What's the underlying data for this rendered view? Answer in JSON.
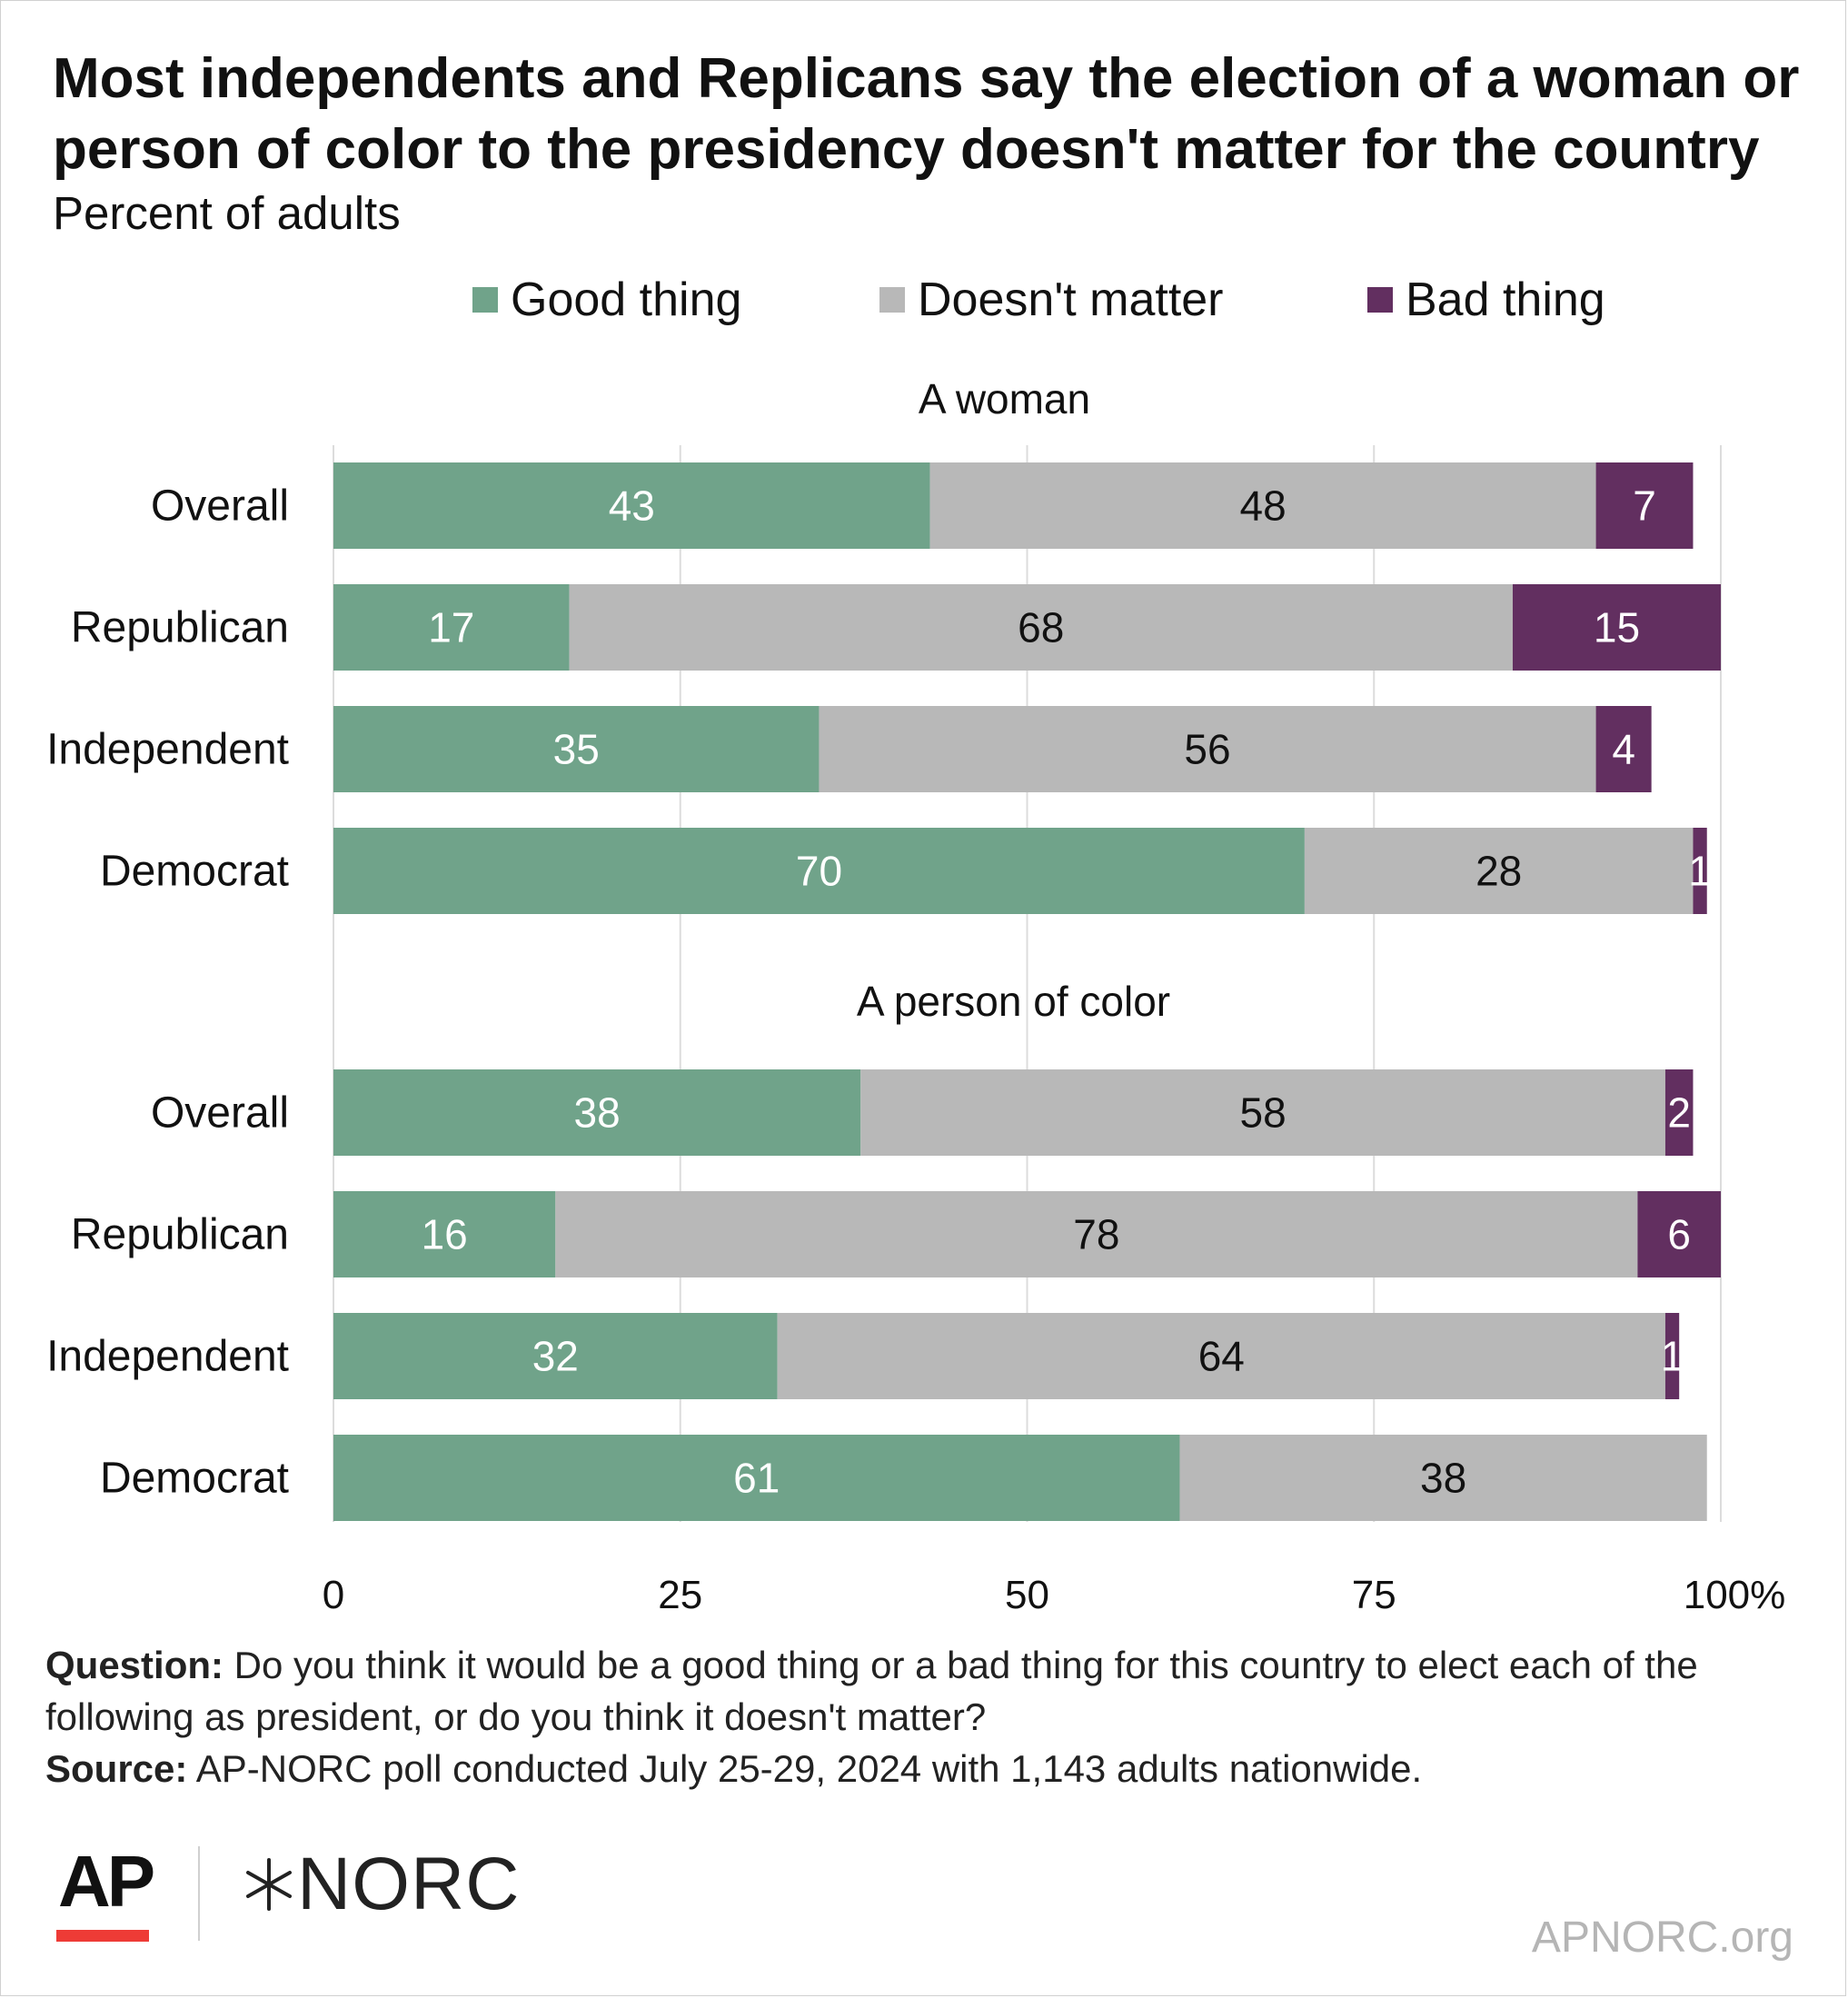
{
  "title": "Most independents and Replicans say the election of a woman or person of color to the presidency doesn't matter for the country",
  "subtitle": "Percent of adults",
  "legend": [
    {
      "label": "Good thing",
      "color": "#70a38a"
    },
    {
      "label": "Doesn't matter",
      "color": "#b8b8b8"
    },
    {
      "label": "Bad thing",
      "color": "#622f60"
    }
  ],
  "footer": {
    "question_label": "Question:",
    "question_text": " Do you think it would be a good thing or a bad thing for this country to elect each of the following as president, or do you think it doesn't matter?",
    "source_label": "Source:",
    "source_text": " AP-NORC poll conducted July 25-29, 2024 with 1,143 adults nationwide."
  },
  "logos": {
    "ap": "AP",
    "norc": "NORC",
    "norc_icon": "star-burst-icon"
  },
  "site": "APNORC.org",
  "chart_data": {
    "type": "bar",
    "orientation": "horizontal",
    "stacked": true,
    "xlim": [
      0,
      100
    ],
    "xticks": [
      "0",
      "25",
      "50",
      "75",
      "100%"
    ],
    "grid": true,
    "legend_position": "top",
    "groups": [
      {
        "label": "A woman",
        "categories": [
          "Overall",
          "Republican",
          "Independent",
          "Democrat"
        ],
        "series": [
          {
            "name": "Good thing",
            "values": [
              43,
              17,
              35,
              70
            ]
          },
          {
            "name": "Doesn't matter",
            "values": [
              48,
              68,
              56,
              28
            ]
          },
          {
            "name": "Bad thing",
            "values": [
              7,
              15,
              4,
              1
            ]
          }
        ]
      },
      {
        "label": "A person of color",
        "categories": [
          "Overall",
          "Republican",
          "Independent",
          "Democrat"
        ],
        "series": [
          {
            "name": "Good thing",
            "values": [
              38,
              16,
              32,
              61
            ]
          },
          {
            "name": "Doesn't matter",
            "values": [
              58,
              78,
              64,
              38
            ]
          },
          {
            "name": "Bad thing",
            "values": [
              2,
              6,
              1,
              0
            ]
          }
        ]
      }
    ]
  }
}
